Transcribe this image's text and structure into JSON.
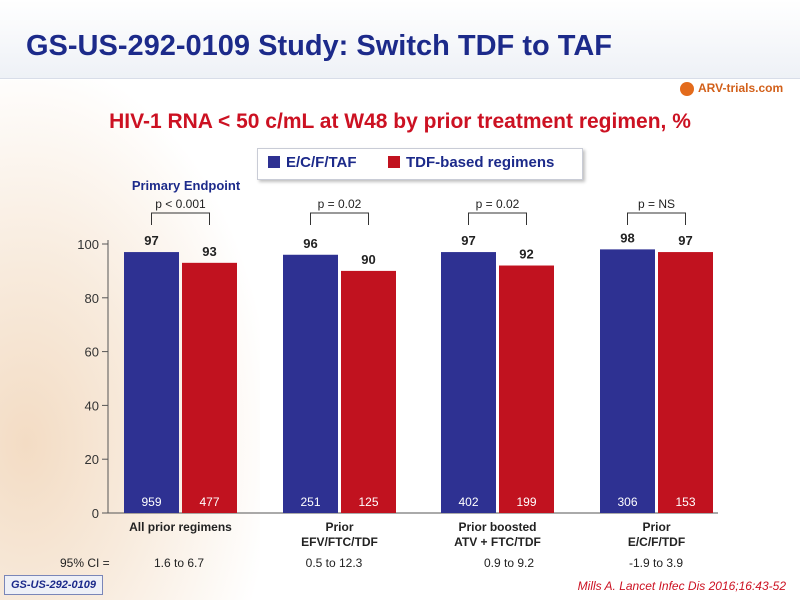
{
  "slide": {
    "title": "GS-US-292-0109 Study: Switch TDF to TAF",
    "subtitle": "HIV-1 RNA < 50 c/mL at W48 by prior treatment regimen, %",
    "logo_text": "ARV-trials.com",
    "study_badge": "GS-US-292-0109",
    "citation": "Mills A. Lancet Infec Dis 2016;16:43-52"
  },
  "colors": {
    "series_1": "#2e3192",
    "series_2": "#c1121f",
    "title": "#1c2a8a",
    "subtitle": "#cc1122"
  },
  "chart_data": {
    "type": "bar",
    "ylim": [
      0,
      100
    ],
    "yticks": [
      0,
      20,
      40,
      60,
      80,
      100
    ],
    "categories": [
      [
        "All prior regimens"
      ],
      [
        "Prior",
        "EFV/FTC/TDF"
      ],
      [
        "Prior boosted",
        "ATV + FTC/TDF"
      ],
      [
        "Prior",
        "E/C/F/TDF"
      ]
    ],
    "series": [
      {
        "name": "E/C/F/TAF",
        "values": [
          97,
          96,
          97,
          98
        ],
        "n": [
          "959",
          "251",
          "402",
          "306"
        ]
      },
      {
        "name": "TDF-based regimens",
        "values": [
          93,
          90,
          92,
          97
        ],
        "n": [
          "477",
          "125",
          "199",
          "153"
        ]
      }
    ],
    "p_values": [
      "p < 0.001",
      "p = 0.02",
      "p = 0.02",
      "p = NS"
    ],
    "ci_label": "95% CI =",
    "ci_values": [
      "1.6 to 6.7",
      "0.5 to 12.3",
      "0.9 to 9.2",
      "-1.9 to 3.9"
    ],
    "annotation": "Primary  Endpoint"
  }
}
